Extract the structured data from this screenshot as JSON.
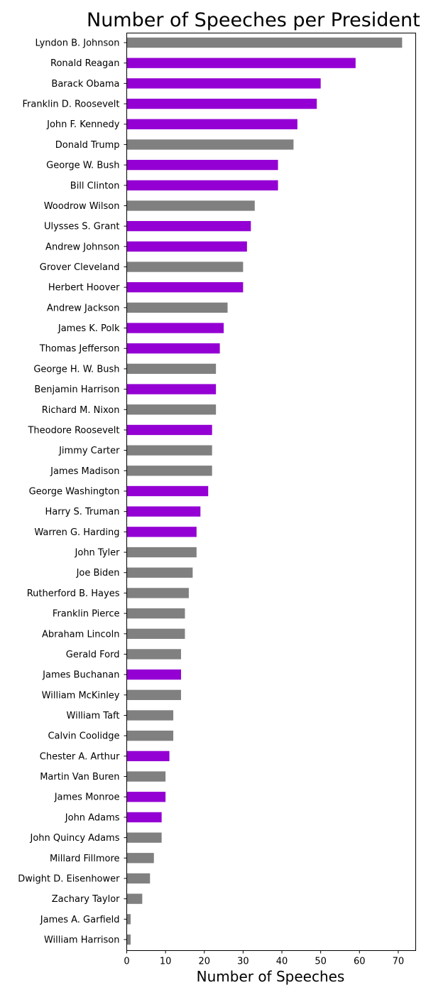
{
  "chart_data": {
    "type": "bar",
    "orientation": "horizontal",
    "title": "Number of Speeches per President",
    "xlabel": "Number of Speeches",
    "ylabel": "",
    "xlim": [
      0,
      74.5
    ],
    "xticks": [
      0,
      10,
      20,
      30,
      40,
      50,
      60,
      70
    ],
    "grid": false,
    "colors": {
      "purple": "#9400d3",
      "gray": "#808080"
    },
    "categories": [
      "Lyndon B. Johnson",
      "Ronald Reagan",
      "Barack Obama",
      "Franklin D. Roosevelt",
      "John F. Kennedy",
      "Donald Trump",
      "George W. Bush",
      "Bill Clinton",
      "Woodrow Wilson",
      "Ulysses S. Grant",
      "Andrew Johnson",
      "Grover Cleveland",
      "Herbert Hoover",
      "Andrew Jackson",
      "James K. Polk",
      "Thomas Jefferson",
      "George H. W. Bush",
      "Benjamin Harrison",
      "Richard M. Nixon",
      "Theodore Roosevelt",
      "Jimmy Carter",
      "James Madison",
      "George Washington",
      "Harry S. Truman",
      "Warren G. Harding",
      "John Tyler",
      "Joe Biden",
      "Rutherford B. Hayes",
      "Franklin Pierce",
      "Abraham Lincoln",
      "Gerald Ford",
      "James Buchanan",
      "William McKinley",
      "William Taft",
      "Calvin Coolidge",
      "Chester A. Arthur",
      "Martin Van Buren",
      "James Monroe",
      "John Adams",
      "John Quincy Adams",
      "Millard Fillmore",
      "Dwight D. Eisenhower",
      "Zachary Taylor",
      "James A. Garfield",
      "William Harrison"
    ],
    "values": [
      71,
      59,
      50,
      49,
      44,
      43,
      39,
      39,
      33,
      32,
      31,
      30,
      30,
      26,
      25,
      24,
      23,
      23,
      23,
      22,
      22,
      22,
      21,
      19,
      18,
      18,
      17,
      16,
      15,
      15,
      14,
      14,
      14,
      12,
      12,
      11,
      10,
      10,
      9,
      9,
      7,
      6,
      4,
      1,
      1
    ],
    "bar_colors": [
      "gray",
      "purple",
      "purple",
      "purple",
      "purple",
      "gray",
      "purple",
      "purple",
      "gray",
      "purple",
      "purple",
      "gray",
      "purple",
      "gray",
      "purple",
      "purple",
      "gray",
      "purple",
      "gray",
      "purple",
      "gray",
      "gray",
      "purple",
      "purple",
      "purple",
      "gray",
      "gray",
      "gray",
      "gray",
      "gray",
      "gray",
      "purple",
      "gray",
      "gray",
      "gray",
      "purple",
      "gray",
      "purple",
      "purple",
      "gray",
      "gray",
      "gray",
      "gray",
      "gray",
      "gray"
    ]
  }
}
